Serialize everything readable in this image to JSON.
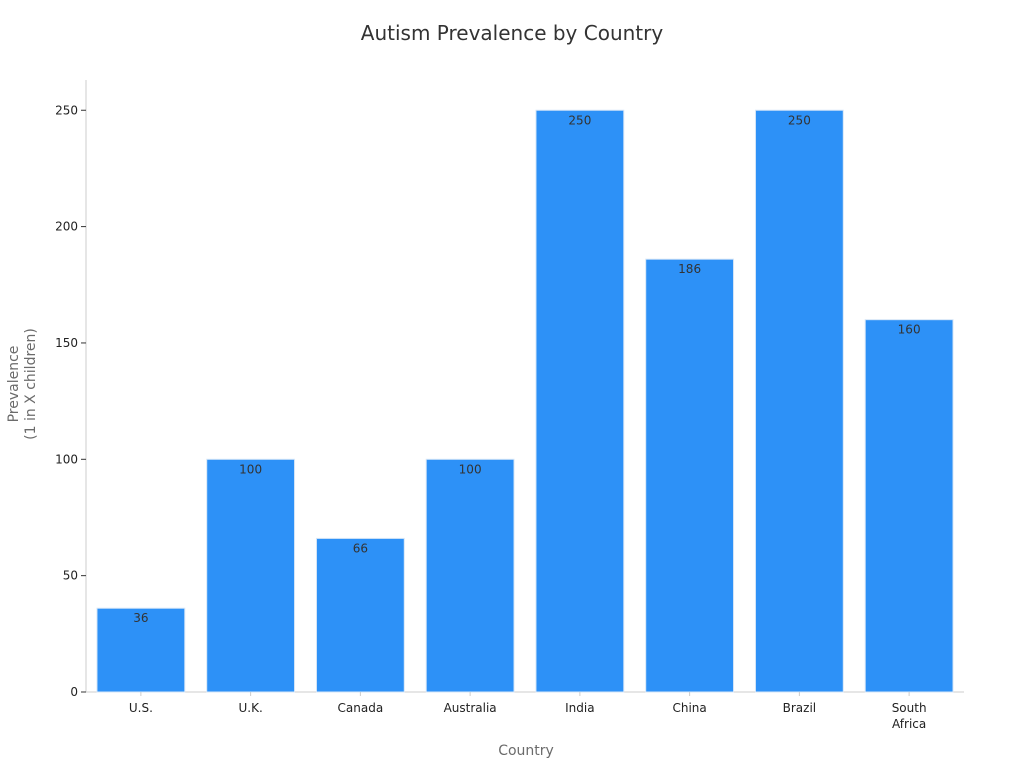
{
  "chart_data": {
    "type": "bar",
    "title": "Autism Prevalence by Country",
    "xlabel": "Country",
    "ylabel_lines": [
      "Prevalence",
      "(1 in X children)"
    ],
    "categories": [
      [
        "U.S."
      ],
      [
        "U.K."
      ],
      [
        "Canada"
      ],
      [
        "Australia"
      ],
      [
        "India"
      ],
      [
        "China"
      ],
      [
        "Brazil"
      ],
      [
        "South",
        "Africa"
      ]
    ],
    "values": [
      36,
      100,
      66,
      100,
      250,
      186,
      250,
      160
    ],
    "ylim": [
      0,
      263
    ],
    "yticks": [
      0,
      50,
      100,
      150,
      200,
      250
    ],
    "grid": false,
    "legend": "none",
    "bar_color": "#2d91f7",
    "data_labels": true
  }
}
